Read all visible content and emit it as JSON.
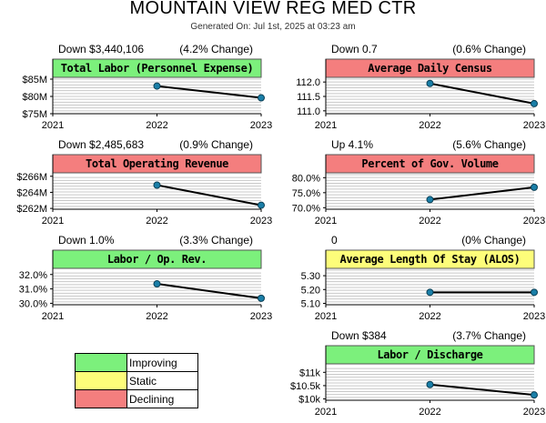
{
  "header": {
    "title": "MOUNTAIN VIEW REG MED CTR",
    "generated": "Generated On: Jul 1st, 2025 at 03:23 am"
  },
  "colors": {
    "Improving": "#7cf07c",
    "Static": "#fdfd7a",
    "Declining": "#f47e7e",
    "marker": "#1a7fa8",
    "line": "#000000"
  },
  "legend": [
    {
      "label": "Improving",
      "status": "Improving"
    },
    {
      "label": "Static",
      "status": "Static"
    },
    {
      "label": "Declining",
      "status": "Declining"
    }
  ],
  "chart_data": [
    {
      "type": "line",
      "title": "Total Labor (Personnel Expense)",
      "status": "Improving",
      "summary_left": "Down $3,440,106",
      "summary_right": "(4.2% Change)",
      "x_ticks": [
        "2021",
        "2022",
        "2023"
      ],
      "x": [
        "2022",
        "2023"
      ],
      "values": [
        83000000,
        79600000
      ],
      "ylim": [
        75000000,
        85000000
      ],
      "y_ticks": [
        {
          "v": 75000000,
          "label": "$75M"
        },
        {
          "v": 80000000,
          "label": "$80M"
        },
        {
          "v": 85000000,
          "label": "$85M"
        }
      ]
    },
    {
      "type": "line",
      "title": "Average Daily Census",
      "status": "Declining",
      "summary_left": "Down 0.7",
      "summary_right": "(0.6% Change)",
      "x_ticks": [
        "2021",
        "2022",
        "2023"
      ],
      "x": [
        "2022",
        "2023"
      ],
      "values": [
        111.95,
        111.25
      ],
      "ylim": [
        110.9,
        112.1
      ],
      "y_ticks": [
        {
          "v": 111.0,
          "label": "111.0"
        },
        {
          "v": 111.5,
          "label": "111.5"
        },
        {
          "v": 112.0,
          "label": "112.0"
        }
      ]
    },
    {
      "type": "line",
      "title": "Total Operating Revenue",
      "status": "Declining",
      "summary_left": "Down $2,485,683",
      "summary_right": "(0.9% Change)",
      "x_ticks": [
        "2021",
        "2022",
        "2023"
      ],
      "x": [
        "2022",
        "2023"
      ],
      "values": [
        264900000,
        262400000
      ],
      "ylim": [
        261900000,
        266200000
      ],
      "y_ticks": [
        {
          "v": 262000000,
          "label": "$262M"
        },
        {
          "v": 264000000,
          "label": "$264M"
        },
        {
          "v": 266000000,
          "label": "$266M"
        }
      ]
    },
    {
      "type": "line",
      "title": "Percent of Gov. Volume",
      "status": "Declining",
      "summary_left": "Up 4.1%",
      "summary_right": "(5.6% Change)",
      "x_ticks": [
        "2021",
        "2022",
        "2023"
      ],
      "x": [
        "2022",
        "2023"
      ],
      "values": [
        72.7,
        76.8
      ],
      "ylim": [
        69.5,
        81.0
      ],
      "y_ticks": [
        {
          "v": 70.0,
          "label": "70.0%"
        },
        {
          "v": 75.0,
          "label": "75.0%"
        },
        {
          "v": 80.0,
          "label": "80.0%"
        }
      ]
    },
    {
      "type": "line",
      "title": "Labor / Op. Rev.",
      "status": "Improving",
      "summary_left": "Down 1.0%",
      "summary_right": "(3.3% Change)",
      "x_ticks": [
        "2021",
        "2022",
        "2023"
      ],
      "x": [
        "2022",
        "2023"
      ],
      "values": [
        31.35,
        30.35
      ],
      "ylim": [
        29.9,
        32.3
      ],
      "y_ticks": [
        {
          "v": 30.0,
          "label": "30.0%"
        },
        {
          "v": 31.0,
          "label": "31.0%"
        },
        {
          "v": 32.0,
          "label": "32.0%"
        }
      ]
    },
    {
      "type": "line",
      "title": "Average Length Of Stay (ALOS)",
      "status": "Static",
      "summary_left": "0",
      "summary_right": "(0% Change)",
      "x_ticks": [
        "2021",
        "2022",
        "2023"
      ],
      "x": [
        "2022",
        "2023"
      ],
      "values": [
        5.18,
        5.18
      ],
      "ylim": [
        5.09,
        5.34
      ],
      "y_ticks": [
        {
          "v": 5.1,
          "label": "5.10"
        },
        {
          "v": 5.2,
          "label": "5.20"
        },
        {
          "v": 5.3,
          "label": "5.30"
        }
      ]
    },
    {
      "type": "line",
      "title": "Labor / Discharge",
      "status": "Improving",
      "summary_left": "Down $384",
      "summary_right": "(3.7% Change)",
      "x_ticks": [
        "2021",
        "2022",
        "2023"
      ],
      "x": [
        "2022",
        "2023"
      ],
      "values": [
        10540,
        10150
      ],
      "ylim": [
        9950,
        11250
      ],
      "y_ticks": [
        {
          "v": 10000,
          "label": "$10k"
        },
        {
          "v": 10500,
          "label": "$10.5k"
        },
        {
          "v": 11000,
          "label": "$11k"
        }
      ]
    }
  ]
}
